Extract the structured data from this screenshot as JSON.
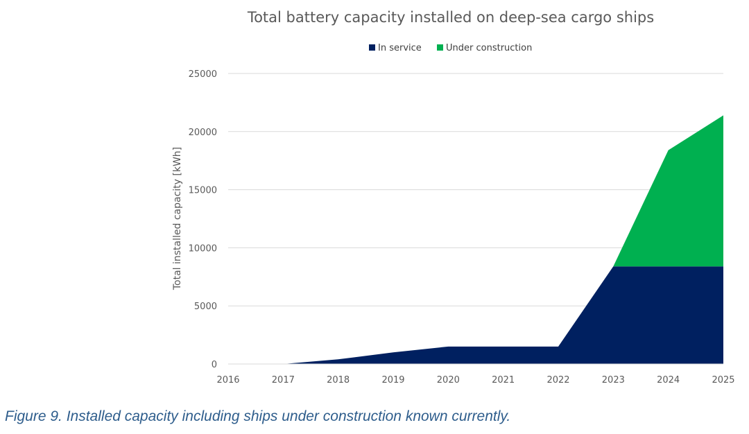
{
  "chart_data": {
    "type": "area",
    "stacked": true,
    "title": "Total battery capacity installed on deep-sea cargo ships",
    "xlabel": "",
    "ylabel": "Total installed capacity [kWh]",
    "categories": [
      "2016",
      "2017",
      "2018",
      "2019",
      "2020",
      "2021",
      "2022",
      "2023",
      "2024",
      "2025"
    ],
    "series": [
      {
        "name": "In service",
        "color": "#002060",
        "values": [
          0,
          0,
          400,
          1000,
          1500,
          1500,
          1500,
          8400,
          8400,
          8400
        ]
      },
      {
        "name": "Under construction",
        "color": "#00b050",
        "values": [
          0,
          0,
          0,
          0,
          0,
          0,
          0,
          0,
          10000,
          13000
        ]
      }
    ],
    "ylim": [
      0,
      25000
    ],
    "yticks": [
      "0",
      "5000",
      "10000",
      "15000",
      "20000",
      "25000"
    ],
    "grid": "horizontal",
    "legend": "top-center"
  },
  "caption": "Figure 9. Installed capacity including ships under construction known currently."
}
